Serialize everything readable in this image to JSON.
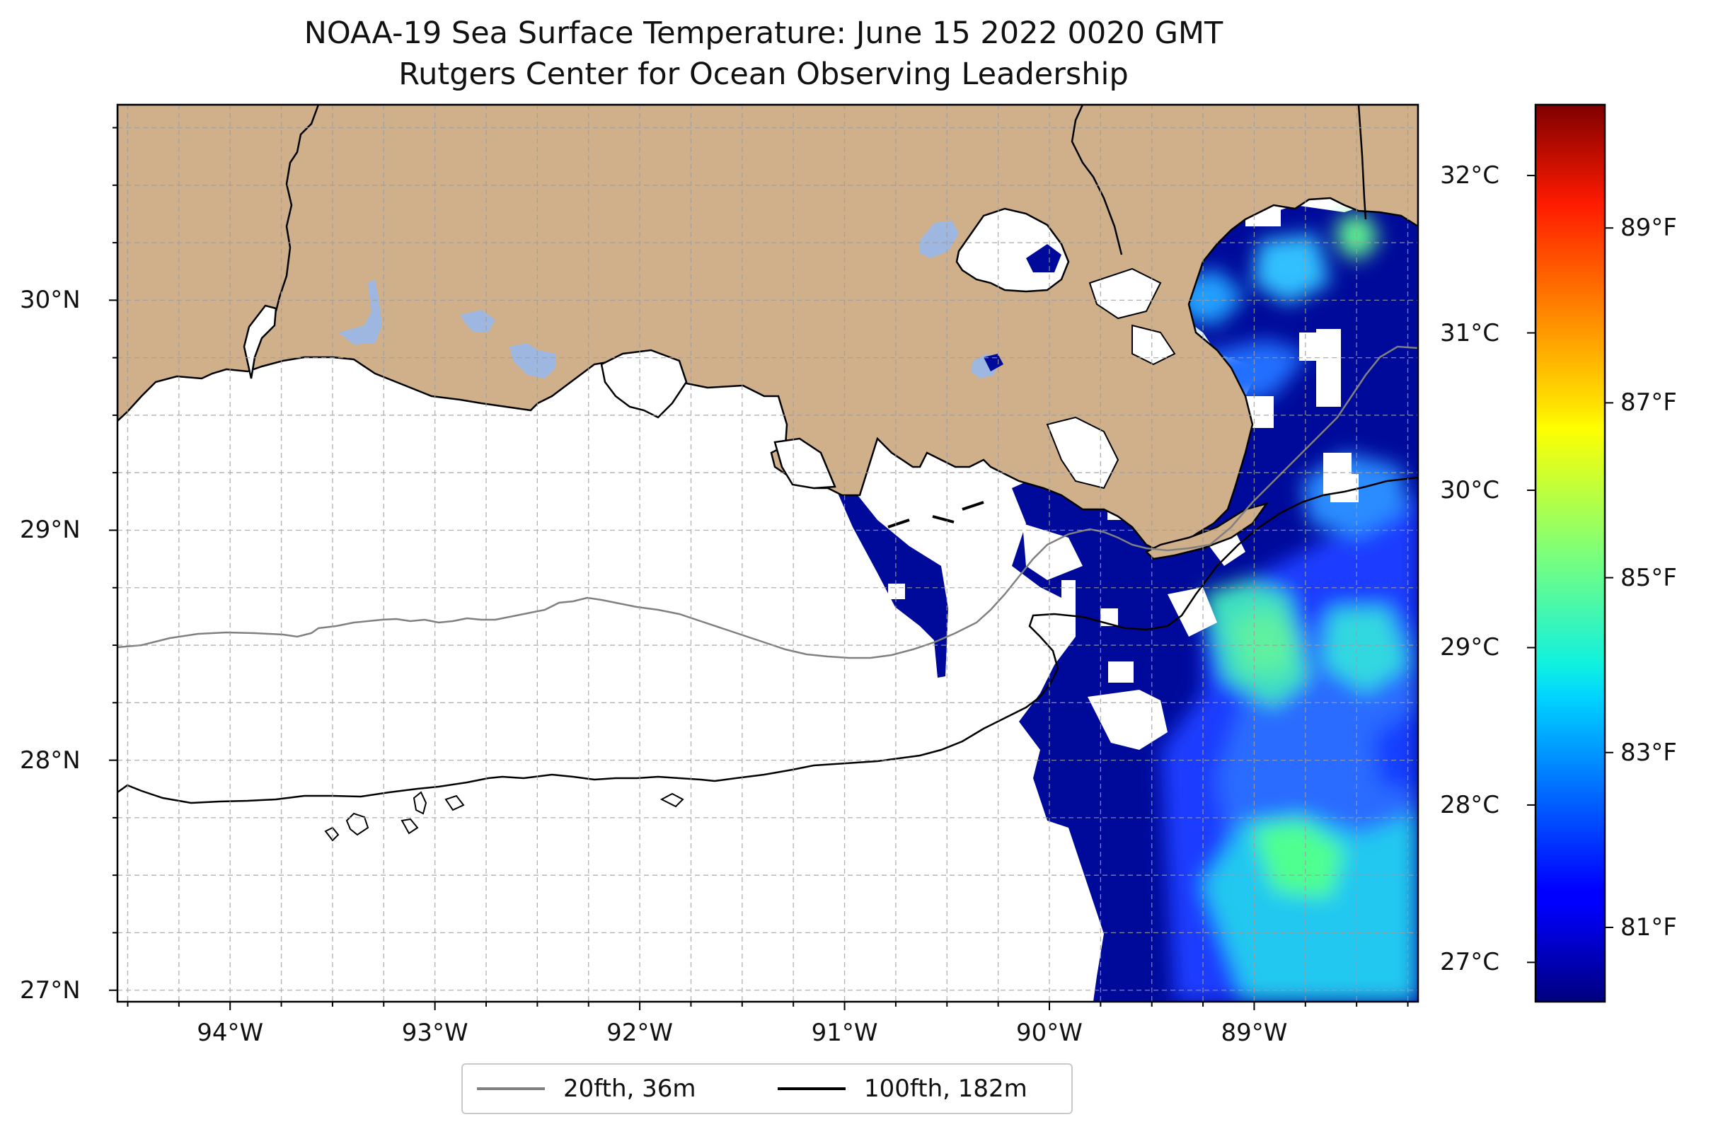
{
  "title": "NOAA-19 Sea Surface Temperature: June 15 2022 0020 GMT",
  "subtitle": "Rutgers Center for Ocean Observing Leadership",
  "map": {
    "lon_range": [
      -94.55,
      -88.2
    ],
    "lat_range": [
      26.95,
      30.85
    ],
    "lon_ticks": [
      {
        "value": -94,
        "label": "94°W"
      },
      {
        "value": -93,
        "label": "93°W"
      },
      {
        "value": -92,
        "label": "92°W"
      },
      {
        "value": -91,
        "label": "91°W"
      },
      {
        "value": -90,
        "label": "90°W"
      },
      {
        "value": -89,
        "label": "89°W"
      }
    ],
    "lat_ticks": [
      {
        "value": 30,
        "label": "30°N"
      },
      {
        "value": 29,
        "label": "29°N"
      },
      {
        "value": 28,
        "label": "28°N"
      },
      {
        "value": 27,
        "label": "27°N"
      }
    ],
    "grid": true,
    "colors": {
      "land": "#cfb08a",
      "lakes": "#9db7e0",
      "ocean": "#ffffff",
      "isobath_20": "#808080",
      "isobath_100": "#000000",
      "grid": "#bdbdbd"
    }
  },
  "colorbar": {
    "colormap": "jet",
    "range_c": [
      26.75,
      32.45
    ],
    "celsius_ticks": [
      {
        "value": 27,
        "label": "27°C"
      },
      {
        "value": 28,
        "label": "28°C"
      },
      {
        "value": 29,
        "label": "29°C"
      },
      {
        "value": 30,
        "label": "30°C"
      },
      {
        "value": 31,
        "label": "31°C"
      },
      {
        "value": 32,
        "label": "32°C"
      }
    ],
    "fahrenheit_ticks": [
      {
        "value": 81,
        "label": "81°F"
      },
      {
        "value": 83,
        "label": "83°F"
      },
      {
        "value": 85,
        "label": "85°F"
      },
      {
        "value": 87,
        "label": "87°F"
      },
      {
        "value": 89,
        "label": "89°F"
      }
    ]
  },
  "legend": {
    "items": [
      {
        "label": "20fth, 36m",
        "color": "#808080"
      },
      {
        "label": "100fth, 182m",
        "color": "#000000"
      }
    ],
    "placement": "bottom-center"
  }
}
